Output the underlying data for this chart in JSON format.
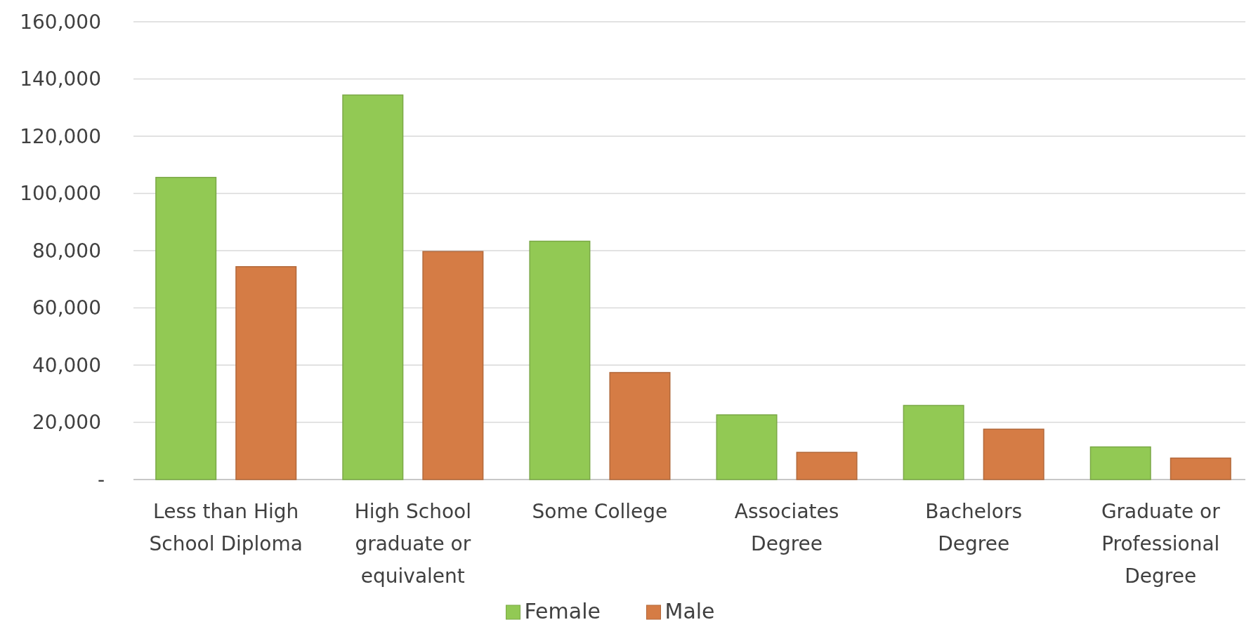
{
  "chart_data": {
    "type": "bar",
    "categories": [
      "Less than High School Diploma",
      "High School graduate or equivalent",
      "Some College",
      "Associates Degree",
      "Bachelors Degree",
      "Graduate or Professional Degree"
    ],
    "series": [
      {
        "name": "Female",
        "color": "#92c954",
        "values": [
          105600,
          134400,
          83300,
          22600,
          25900,
          11400
        ]
      },
      {
        "name": "Male",
        "color": "#d57c45",
        "values": [
          74400,
          79700,
          37400,
          9500,
          17600,
          7500
        ]
      }
    ],
    "ylim": [
      0,
      160000
    ],
    "yticks": [
      {
        "value": 0,
        "label": "-"
      },
      {
        "value": 20000,
        "label": "20,000"
      },
      {
        "value": 40000,
        "label": "40,000"
      },
      {
        "value": 60000,
        "label": "60,000"
      },
      {
        "value": 80000,
        "label": "80,000"
      },
      {
        "value": 100000,
        "label": "100,000"
      },
      {
        "value": 120000,
        "label": "120,000"
      },
      {
        "value": 140000,
        "label": "140,000"
      },
      {
        "value": 160000,
        "label": "160,000"
      }
    ],
    "grid": "y",
    "legend": "bottom"
  }
}
